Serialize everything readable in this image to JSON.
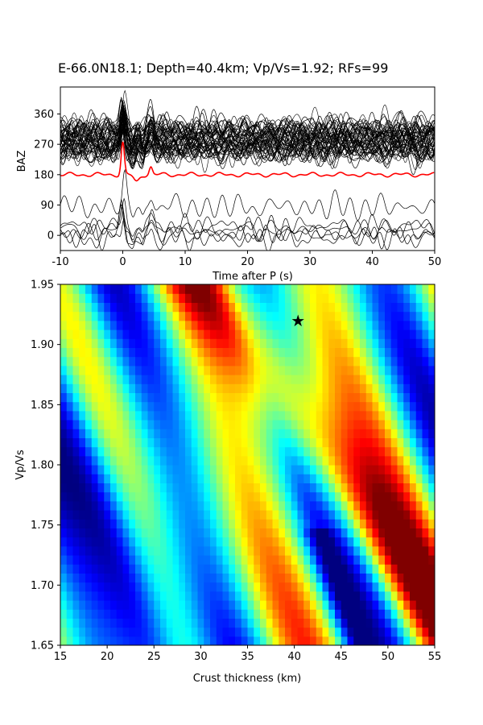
{
  "chart_data": [
    {
      "type": "line",
      "title": "E-66.0N18.1; Depth=40.4km; Vp/Vs=1.92; RFs=99",
      "xlabel": "Time after P (s)",
      "ylabel": "BAZ",
      "xlim": [
        -10,
        50
      ],
      "ylim": [
        -45,
        440
      ],
      "xticks": [
        -10,
        0,
        10,
        20,
        30,
        40,
        50
      ],
      "yticks": [
        0,
        90,
        180,
        270,
        360
      ],
      "grid": false,
      "colors": {
        "traces": "#000000",
        "stack": "#ff0000"
      },
      "series": [
        {
          "description": "receiver function traces stacked at back-azimuth offsets",
          "baz_offsets": [
            -10,
            0,
            10,
            20,
            30,
            85,
            235,
            245,
            250,
            255,
            260,
            265,
            270,
            275,
            280,
            285,
            290,
            295,
            300,
            305,
            310,
            315,
            320,
            325,
            330
          ]
        },
        {
          "description": "stacked trace",
          "baz_offset": 180,
          "peaks": [
            {
              "t": 0,
              "amp": 95
            },
            {
              "t": 4.5,
              "amp": 22
            }
          ]
        }
      ]
    },
    {
      "type": "heatmap",
      "xlabel": "Crust thickness (km)",
      "ylabel": "Vp/Vs",
      "xlim": [
        15,
        55
      ],
      "ylim": [
        1.65,
        1.95
      ],
      "xticks": [
        15,
        20,
        25,
        30,
        35,
        40,
        45,
        50,
        55
      ],
      "yticks": [
        1.65,
        1.7,
        1.75,
        1.8,
        1.85,
        1.9,
        1.95
      ],
      "colormap": "jet",
      "best": {
        "H": 40.4,
        "k": 1.92
      }
    }
  ]
}
